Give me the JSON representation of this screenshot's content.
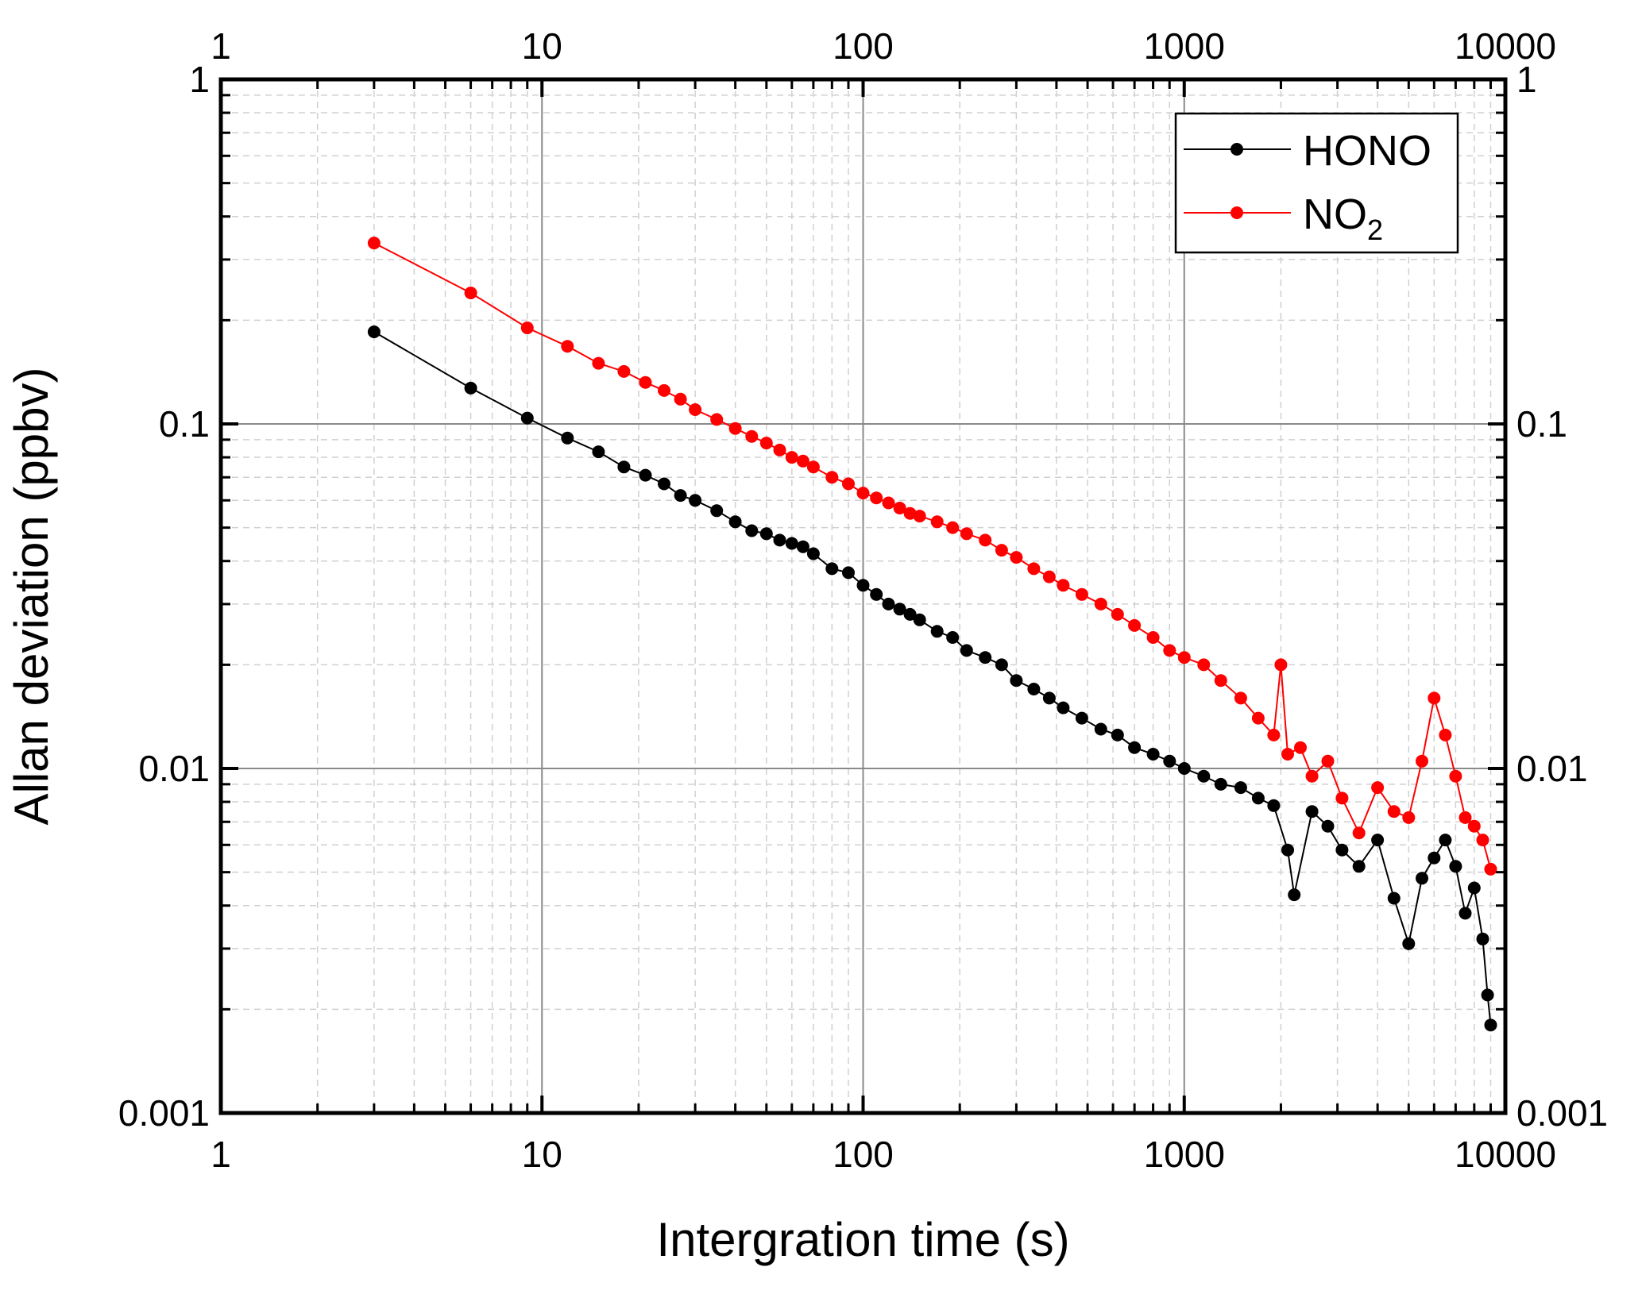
{
  "chart_data": {
    "type": "scatter",
    "xlabel": "Intergration time (s)",
    "ylabel": "Allan deviation (ppbv)",
    "x_scale": "log",
    "y_scale": "log",
    "xlim": [
      1,
      10000
    ],
    "ylim": [
      0.001,
      1
    ],
    "x_ticks": [
      "1",
      "10",
      "100",
      "1000",
      "10000"
    ],
    "y_ticks": [
      "0.001",
      "0.01",
      "0.1",
      "1"
    ],
    "grid": true,
    "legend_position": "top-right",
    "series": [
      {
        "name": "HONO",
        "color": "#000000",
        "points": [
          [
            3,
            0.185
          ],
          [
            6,
            0.127
          ],
          [
            9,
            0.104
          ],
          [
            12,
            0.091
          ],
          [
            15,
            0.083
          ],
          [
            18,
            0.075
          ],
          [
            21,
            0.071
          ],
          [
            24,
            0.067
          ],
          [
            27,
            0.062
          ],
          [
            30,
            0.06
          ],
          [
            35,
            0.056
          ],
          [
            40,
            0.052
          ],
          [
            45,
            0.049
          ],
          [
            50,
            0.048
          ],
          [
            55,
            0.046
          ],
          [
            60,
            0.045
          ],
          [
            65,
            0.044
          ],
          [
            70,
            0.042
          ],
          [
            80,
            0.038
          ],
          [
            90,
            0.037
          ],
          [
            100,
            0.034
          ],
          [
            110,
            0.032
          ],
          [
            120,
            0.03
          ],
          [
            130,
            0.029
          ],
          [
            140,
            0.028
          ],
          [
            150,
            0.027
          ],
          [
            170,
            0.025
          ],
          [
            190,
            0.024
          ],
          [
            210,
            0.022
          ],
          [
            240,
            0.021
          ],
          [
            270,
            0.02
          ],
          [
            300,
            0.018
          ],
          [
            340,
            0.017
          ],
          [
            380,
            0.016
          ],
          [
            420,
            0.015
          ],
          [
            480,
            0.014
          ],
          [
            550,
            0.013
          ],
          [
            620,
            0.0125
          ],
          [
            700,
            0.0115
          ],
          [
            800,
            0.011
          ],
          [
            900,
            0.0105
          ],
          [
            1000,
            0.01
          ],
          [
            1150,
            0.0095
          ],
          [
            1300,
            0.009
          ],
          [
            1500,
            0.0088
          ],
          [
            1700,
            0.0082
          ],
          [
            1900,
            0.0078
          ],
          [
            2100,
            0.0058
          ],
          [
            2200,
            0.0043
          ],
          [
            2500,
            0.0075
          ],
          [
            2800,
            0.0068
          ],
          [
            3100,
            0.0058
          ],
          [
            3500,
            0.0052
          ],
          [
            4000,
            0.0062
          ],
          [
            4500,
            0.0042
          ],
          [
            5000,
            0.0031
          ],
          [
            5500,
            0.0048
          ],
          [
            6000,
            0.0055
          ],
          [
            6500,
            0.0062
          ],
          [
            7000,
            0.0052
          ],
          [
            7500,
            0.0038
          ],
          [
            8000,
            0.0045
          ],
          [
            8500,
            0.0032
          ],
          [
            8800,
            0.0022
          ],
          [
            9000,
            0.0018
          ]
        ]
      },
      {
        "name": "NO2",
        "color": "#ff0000",
        "points": [
          [
            3,
            0.335
          ],
          [
            6,
            0.24
          ],
          [
            9,
            0.19
          ],
          [
            12,
            0.168
          ],
          [
            15,
            0.15
          ],
          [
            18,
            0.142
          ],
          [
            21,
            0.132
          ],
          [
            24,
            0.125
          ],
          [
            27,
            0.118
          ],
          [
            30,
            0.11
          ],
          [
            35,
            0.103
          ],
          [
            40,
            0.097
          ],
          [
            45,
            0.092
          ],
          [
            50,
            0.088
          ],
          [
            55,
            0.084
          ],
          [
            60,
            0.08
          ],
          [
            65,
            0.078
          ],
          [
            70,
            0.075
          ],
          [
            80,
            0.07
          ],
          [
            90,
            0.067
          ],
          [
            100,
            0.063
          ],
          [
            110,
            0.061
          ],
          [
            120,
            0.059
          ],
          [
            130,
            0.057
          ],
          [
            140,
            0.055
          ],
          [
            150,
            0.054
          ],
          [
            170,
            0.052
          ],
          [
            190,
            0.05
          ],
          [
            210,
            0.048
          ],
          [
            240,
            0.046
          ],
          [
            270,
            0.043
          ],
          [
            300,
            0.041
          ],
          [
            340,
            0.038
          ],
          [
            380,
            0.036
          ],
          [
            420,
            0.034
          ],
          [
            480,
            0.032
          ],
          [
            550,
            0.03
          ],
          [
            620,
            0.028
          ],
          [
            700,
            0.026
          ],
          [
            800,
            0.024
          ],
          [
            900,
            0.022
          ],
          [
            1000,
            0.021
          ],
          [
            1150,
            0.02
          ],
          [
            1300,
            0.018
          ],
          [
            1500,
            0.016
          ],
          [
            1700,
            0.014
          ],
          [
            1900,
            0.0125
          ],
          [
            2000,
            0.02
          ],
          [
            2100,
            0.011
          ],
          [
            2300,
            0.0115
          ],
          [
            2500,
            0.0095
          ],
          [
            2800,
            0.0105
          ],
          [
            3100,
            0.0082
          ],
          [
            3500,
            0.0065
          ],
          [
            4000,
            0.0088
          ],
          [
            4500,
            0.0075
          ],
          [
            5000,
            0.0072
          ],
          [
            5500,
            0.0105
          ],
          [
            6000,
            0.016
          ],
          [
            6500,
            0.0125
          ],
          [
            7000,
            0.0095
          ],
          [
            7500,
            0.0072
          ],
          [
            8000,
            0.0068
          ],
          [
            8500,
            0.0062
          ],
          [
            9000,
            0.0051
          ]
        ]
      }
    ],
    "legend": [
      {
        "label": "HONO",
        "sub": "",
        "color": "#000000"
      },
      {
        "label": "NO",
        "sub": "2",
        "color": "#ff0000"
      }
    ]
  }
}
